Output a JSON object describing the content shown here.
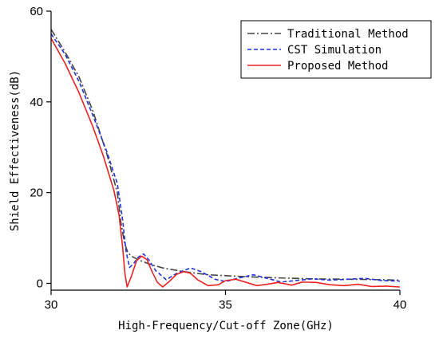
{
  "chart_data": {
    "type": "line",
    "xlabel": "High-Frequency/Cut-off Zone(GHz)",
    "ylabel": "Shield Effectiveness(dB)",
    "xlim": [
      30,
      40
    ],
    "ylim": [
      -1.5,
      60
    ],
    "xticks": [
      30,
      35,
      40
    ],
    "yticks": [
      0,
      20,
      40,
      60
    ],
    "legend_position": "top-right",
    "grid": false,
    "series": [
      {
        "name": "Traditional Method",
        "color": "#444444",
        "dash": "dashdot",
        "x": [
          30.0,
          30.4,
          30.8,
          31.2,
          31.6,
          31.9,
          32.0,
          32.1,
          32.2,
          32.3,
          32.5,
          32.8,
          33.2,
          33.8,
          34.5,
          35.5,
          36.5,
          37.5,
          38.5,
          39.5,
          40.0
        ],
        "y": [
          56.0,
          51.0,
          45.5,
          38.0,
          28.5,
          20.0,
          13.5,
          9.0,
          6.8,
          6.0,
          5.2,
          4.3,
          3.4,
          2.6,
          1.9,
          1.5,
          1.2,
          1.0,
          0.9,
          0.8,
          0.7
        ]
      },
      {
        "name": "CST Simulation",
        "color": "#2233dd",
        "dash": "dashed",
        "x": [
          30.0,
          30.4,
          30.8,
          31.2,
          31.6,
          31.9,
          32.05,
          32.15,
          32.25,
          32.35,
          32.5,
          32.65,
          32.8,
          33.0,
          33.3,
          33.6,
          34.0,
          34.3,
          34.7,
          35.0,
          35.4,
          35.8,
          36.2,
          36.6,
          37.0,
          37.5,
          38.0,
          38.5,
          39.0,
          39.5,
          40.0
        ],
        "y": [
          55.0,
          50.5,
          44.5,
          37.0,
          29.0,
          22.0,
          14.0,
          7.0,
          3.5,
          4.2,
          5.8,
          6.5,
          5.2,
          2.8,
          0.8,
          2.2,
          3.4,
          2.6,
          0.9,
          0.4,
          1.2,
          1.9,
          1.1,
          0.3,
          0.6,
          1.0,
          0.7,
          0.9,
          1.1,
          0.6,
          0.5
        ]
      },
      {
        "name": "Proposed Method",
        "color": "#ee2222",
        "dash": "solid",
        "x": [
          30.0,
          30.4,
          30.8,
          31.2,
          31.5,
          31.8,
          31.95,
          32.05,
          32.12,
          32.18,
          32.3,
          32.45,
          32.6,
          32.75,
          32.9,
          33.05,
          33.2,
          33.4,
          33.6,
          33.8,
          34.0,
          34.2,
          34.5,
          34.8,
          35.0,
          35.3,
          35.6,
          35.9,
          36.2,
          36.5,
          36.9,
          37.2,
          37.6,
          38.0,
          38.4,
          38.8,
          39.2,
          39.6,
          40.0
        ],
        "y": [
          54.0,
          48.5,
          42.0,
          34.5,
          28.0,
          20.5,
          15.0,
          8.0,
          2.0,
          -0.8,
          1.5,
          5.0,
          6.0,
          5.2,
          2.5,
          0.2,
          -0.8,
          0.5,
          2.0,
          2.6,
          2.2,
          0.8,
          -0.5,
          -0.3,
          0.6,
          0.9,
          0.2,
          -0.5,
          -0.2,
          0.2,
          -0.4,
          0.3,
          0.2,
          -0.3,
          -0.5,
          -0.2,
          -0.7,
          -0.6,
          -0.8
        ]
      }
    ]
  }
}
